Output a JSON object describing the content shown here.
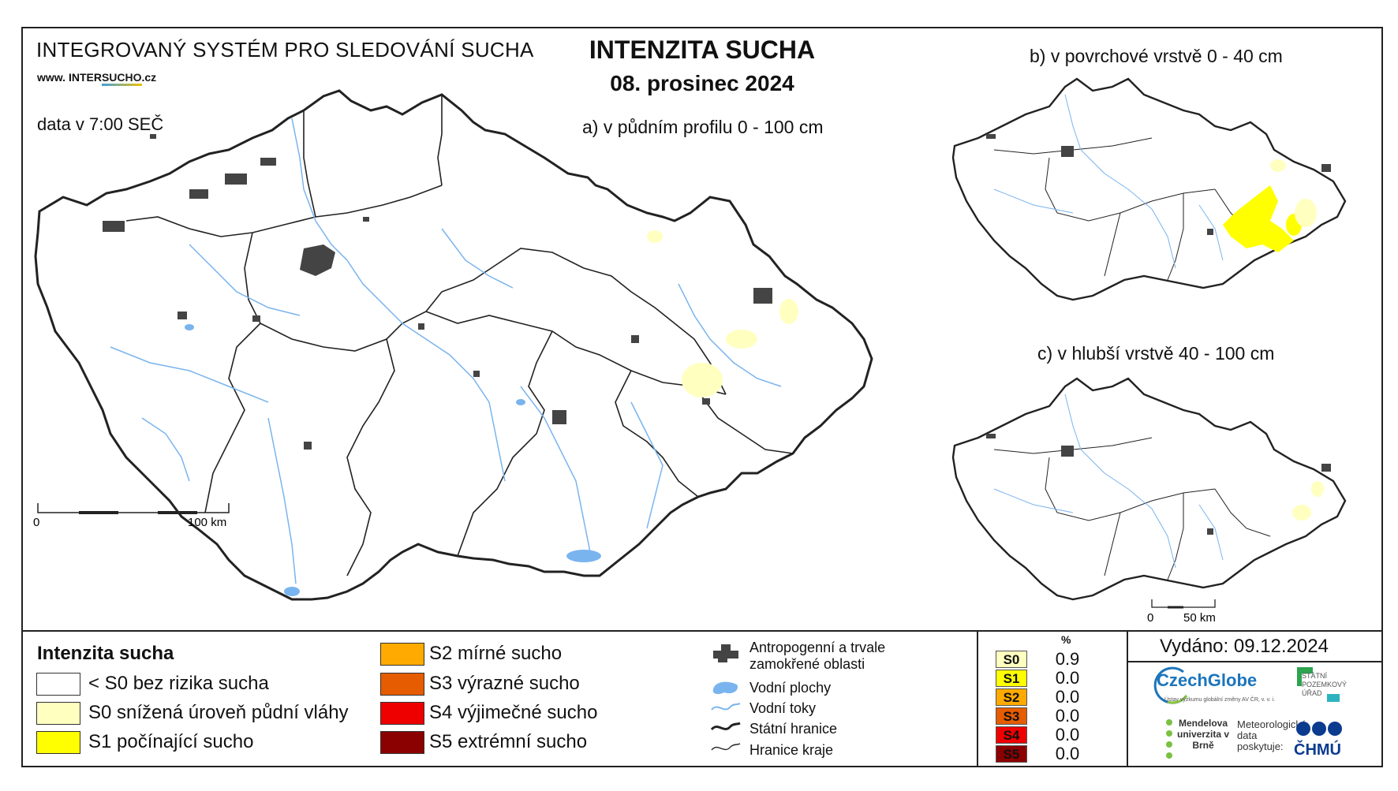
{
  "header": {
    "system_name": "INTEGROVANÝ SYSTÉM PRO SLEDOVÁNÍ SUCHA",
    "website_prefix": "www.",
    "website_mid": "INTER",
    "website_sucho": "SUCHO",
    "website_suffix": ".cz",
    "data_time": "data v 7:00 SEČ",
    "title": "INTENZITA SUCHA",
    "date": "08. prosinec 2024"
  },
  "maps": {
    "a_label": "a) v půdním profilu 0 - 100 cm",
    "b_label": "b) v povrchové vrstvě 0 - 40 cm",
    "c_label": "c) v hlubší vrstvě 40 - 100 cm",
    "scale_main": {
      "start": "0",
      "end": "100 km"
    },
    "scale_small": {
      "start": "0",
      "end": "50 km"
    }
  },
  "legend": {
    "title": "Intenzita sucha",
    "classes": [
      {
        "label": "< S0 bez rizika sucha",
        "color": "#ffffff"
      },
      {
        "label": "S0 snížená úroveň půdní vláhy",
        "color": "#ffffc0"
      },
      {
        "label": "S1 počínající sucho",
        "color": "#ffff00"
      },
      {
        "label": "S2 mírné sucho",
        "color": "#ffaa00"
      },
      {
        "label": "S3 výrazné sucho",
        "color": "#e65c00"
      },
      {
        "label": "S4 výjimečné sucho",
        "color": "#ee0000"
      },
      {
        "label": "S5 extrémní sucho",
        "color": "#8b0000"
      }
    ],
    "layers": [
      {
        "label": "Antropogenní a trvale zamokřené oblasti",
        "icon": "urban-area-icon"
      },
      {
        "label": "Vodní plochy",
        "icon": "water-body-icon"
      },
      {
        "label": "Vodní toky",
        "icon": "river-icon"
      },
      {
        "label": "Státní hranice",
        "icon": "state-border-icon"
      },
      {
        "label": "Hranice kraje",
        "icon": "region-border-icon"
      }
    ]
  },
  "stats": {
    "header": "%",
    "rows": [
      {
        "class": "S0",
        "value": "0.9",
        "color": "#ffffc0"
      },
      {
        "class": "S1",
        "value": "0.0",
        "color": "#ffff00"
      },
      {
        "class": "S2",
        "value": "0.0",
        "color": "#ffaa00"
      },
      {
        "class": "S3",
        "value": "0.0",
        "color": "#e65c00"
      },
      {
        "class": "S4",
        "value": "0.0",
        "color": "#ee0000"
      },
      {
        "class": "S5",
        "value": "0.0",
        "color": "#8b0000"
      }
    ]
  },
  "footer": {
    "issued": "Vydáno: 09.12.2024",
    "logo_czechglobe": "CzechGlobe",
    "logo_czechglobe_sub": "Ústav výzkumu globální změny AV ČR, v. v. i.",
    "logo_spu": "STÁTNÍ POZEMKOVÝ ÚŘAD",
    "logo_mendel": "Mendelova univerzita v Brně",
    "met_data": "Meteorologická data poskytuje:",
    "logo_chmu": "ČHMÚ"
  },
  "colors": {
    "urban": "#444444",
    "water": "#7ab4ee",
    "border": "#222222"
  }
}
